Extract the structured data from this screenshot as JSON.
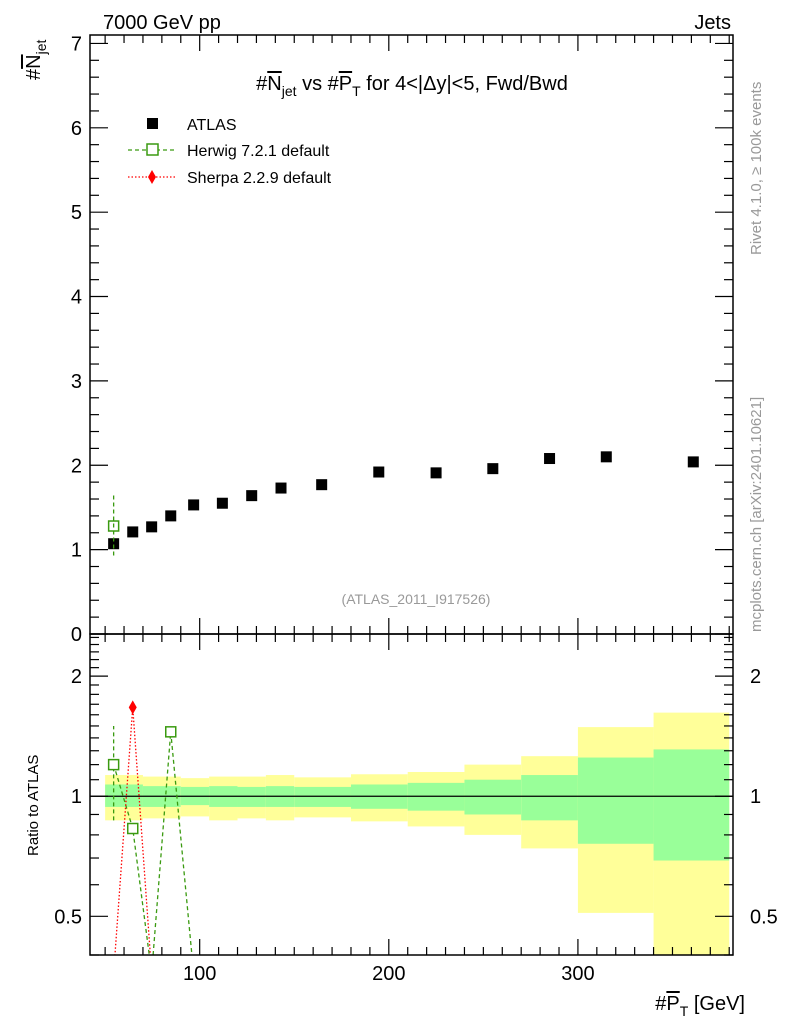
{
  "header": {
    "left": "7000 GeV pp",
    "right": "Jets"
  },
  "side_labels": {
    "rivet": "Rivet 4.1.0, ≥ 100k events",
    "mcplots": "mcplots.cern.ch [arXiv:2401.10621]"
  },
  "watermark": "(ATLAS_2011_I917526)",
  "title": {
    "p1": "#",
    "p2": "N",
    "p3": "jet",
    "p4": " vs #",
    "p5": "P",
    "p6": "T",
    "p7": " for 4<|Δy|<5, Fwd/Bwd"
  },
  "ylabel": {
    "p1": "#",
    "p2": "N",
    "p3": "jet"
  },
  "xlabel": {
    "p1": "#",
    "p2": "P",
    "p3": "T",
    "p4": " [GeV]"
  },
  "ratio_ylabel": "Ratio to ATLAS",
  "colors": {
    "data": "#000000",
    "herwig": "#3a9a10",
    "sherpa": "#ff0000",
    "band_inner": "#99ff99",
    "band_outer": "#ffff99"
  },
  "chart_data": [
    {
      "type": "scatter",
      "panel": "main",
      "xlim": [
        42,
        382
      ],
      "ylim": [
        0,
        7.1
      ],
      "yticks": [
        0,
        1,
        2,
        3,
        4,
        5,
        6,
        7
      ],
      "xticks": [
        100,
        200,
        300
      ],
      "legend_position": "top-left",
      "series": [
        {
          "name": "ATLAS",
          "x": [
            54.5,
            64.6,
            74.6,
            84.7,
            96.8,
            112,
            127.5,
            143,
            164.5,
            194.7,
            225,
            255,
            285,
            315,
            361
          ],
          "y": [
            1.07,
            1.21,
            1.27,
            1.4,
            1.53,
            1.55,
            1.64,
            1.73,
            1.77,
            1.92,
            1.91,
            1.96,
            2.08,
            2.1,
            2.04
          ]
        },
        {
          "name": "Herwig 7.2.1 default",
          "x": [
            54.5
          ],
          "y": [
            1.28
          ],
          "yerr_low": [
            0.93
          ],
          "yerr_high": [
            1.65
          ]
        },
        {
          "name": "Sherpa 2.2.9 default",
          "x": [],
          "y": []
        }
      ]
    },
    {
      "type": "line",
      "panel": "ratio",
      "scale": "log",
      "ylabel": "Ratio to ATLAS",
      "ylim": [
        0.4,
        2.55
      ],
      "yticks": [
        0.5,
        1,
        2
      ],
      "xticks": [
        100,
        200,
        300
      ],
      "bands": {
        "edges": [
          50,
          70,
          90,
          105,
          120,
          135,
          150,
          180,
          210,
          240,
          270,
          300,
          340,
          380
        ],
        "inner_high": [
          1.07,
          1.06,
          1.055,
          1.06,
          1.055,
          1.06,
          1.055,
          1.07,
          1.08,
          1.1,
          1.13,
          1.25,
          1.31
        ],
        "inner_low": [
          0.94,
          0.94,
          0.95,
          0.94,
          0.94,
          0.94,
          0.94,
          0.93,
          0.92,
          0.9,
          0.87,
          0.76,
          0.69
        ],
        "outer_high": [
          1.13,
          1.12,
          1.11,
          1.12,
          1.12,
          1.13,
          1.115,
          1.135,
          1.15,
          1.2,
          1.26,
          1.49,
          1.62
        ],
        "outer_low": [
          0.87,
          0.88,
          0.89,
          0.87,
          0.88,
          0.87,
          0.885,
          0.865,
          0.84,
          0.8,
          0.74,
          0.51,
          0.3
        ]
      },
      "series": [
        {
          "name": "Herwig 7.2.1 default",
          "x": [
            54.5,
            64.6,
            74.6,
            84.7,
            96.8
          ],
          "y": [
            1.2,
            0.83,
            0.2,
            1.45,
            0.2
          ],
          "yerr_low": [
            0.87
          ],
          "yerr_high": [
            1.5
          ]
        },
        {
          "name": "Sherpa 2.2.9 default",
          "x": [
            54.5,
            64.6,
            74.6
          ],
          "y": [
            0.2,
            1.67,
            0.2
          ]
        }
      ]
    }
  ]
}
